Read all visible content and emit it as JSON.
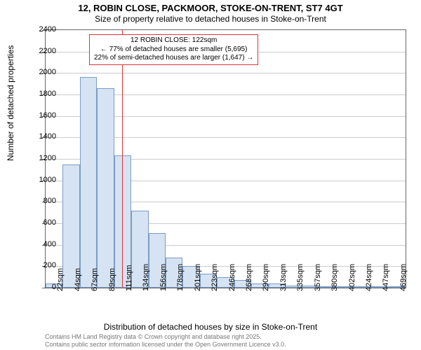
{
  "title": "12, ROBIN CLOSE, PACKMOOR, STOKE-ON-TRENT, ST7 4GT",
  "subtitle": "Size of property relative to detached houses in Stoke-on-Trent",
  "ylabel": "Number of detached properties",
  "xlabel": "Distribution of detached houses by size in Stoke-on-Trent",
  "footer1": "Contains HM Land Registry data © Crown copyright and database right 2025.",
  "footer2": "Contains public sector information licensed under the Open Government Licence v3.0.",
  "chart": {
    "type": "histogram",
    "ylim": [
      0,
      2400
    ],
    "ytick_step": 200,
    "background_color": "#ffffff",
    "grid_color": "#cccccc",
    "axis_color": "#666666",
    "bar_fill": "#d6e3f2",
    "bar_stroke": "#7a9cc6",
    "marker_color": "#d33333",
    "annot_border": "#d33333",
    "label_fontsize": 12,
    "tick_fontsize": 11,
    "title_fontsize": 13,
    "bins": [
      {
        "label": "22sqm",
        "value": 40
      },
      {
        "label": "44sqm",
        "value": 1150
      },
      {
        "label": "67sqm",
        "value": 1960
      },
      {
        "label": "89sqm",
        "value": 1860
      },
      {
        "label": "111sqm",
        "value": 1230
      },
      {
        "label": "134sqm",
        "value": 720
      },
      {
        "label": "156sqm",
        "value": 510
      },
      {
        "label": "178sqm",
        "value": 280
      },
      {
        "label": "201sqm",
        "value": 200
      },
      {
        "label": "223sqm",
        "value": 130
      },
      {
        "label": "246sqm",
        "value": 100
      },
      {
        "label": "268sqm",
        "value": 70
      },
      {
        "label": "290sqm",
        "value": 40
      },
      {
        "label": "313sqm",
        "value": 40
      },
      {
        "label": "335sqm",
        "value": 20
      },
      {
        "label": "357sqm",
        "value": 20
      },
      {
        "label": "380sqm",
        "value": 10
      },
      {
        "label": "402sqm",
        "value": 10
      },
      {
        "label": "424sqm",
        "value": 5
      },
      {
        "label": "447sqm",
        "value": 5
      },
      {
        "label": "469sqm",
        "value": 5
      }
    ],
    "marker_value": 122,
    "marker_range": [
      22,
      491
    ],
    "annot_title": "12 ROBIN CLOSE: 122sqm",
    "annot_line1": "← 77% of detached houses are smaller (5,695)",
    "annot_line2": "22% of semi-detached houses are larger (1,647) →"
  }
}
